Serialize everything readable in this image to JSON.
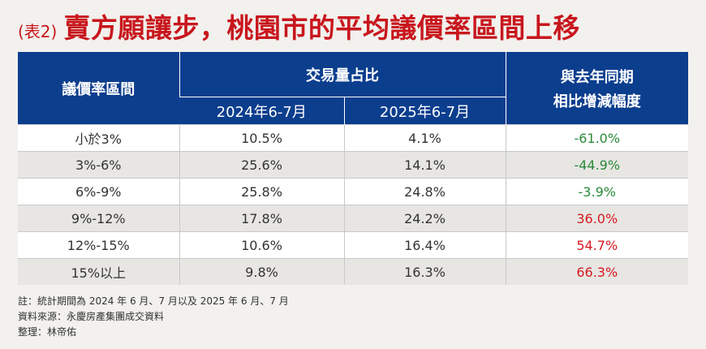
{
  "title": {
    "tag": "(表2)",
    "main": "賣方願讓步，桃園市的平均議價率區間上移"
  },
  "table": {
    "headers": {
      "col1": "議價率區間",
      "group": "交易量占比",
      "sub1": "2024年6-7月",
      "sub2": "2025年6-7月",
      "col4_line1": "與去年同期",
      "col4_line2": "相比增減幅度"
    },
    "rows": [
      {
        "range": "小於3%",
        "y2024": "10.5%",
        "y2025": "4.1%",
        "change": "-61.0%"
      },
      {
        "range": "3%-6%",
        "y2024": "25.6%",
        "y2025": "14.1%",
        "change": "-44.9%"
      },
      {
        "range": "6%-9%",
        "y2024": "25.8%",
        "y2025": "24.8%",
        "change": "-3.9%"
      },
      {
        "range": "9%-12%",
        "y2024": "17.8%",
        "y2025": "24.2%",
        "change": "36.0%"
      },
      {
        "range": "12%-15%",
        "y2024": "10.6%",
        "y2025": "16.4%",
        "change": "54.7%"
      },
      {
        "range": "15%以上",
        "y2024": "9.8%",
        "y2025": "16.3%",
        "change": "66.3%"
      }
    ]
  },
  "colors": {
    "title": "#c8161d",
    "header_bg": "#0c3e8e",
    "negative_change": "#2a8a3a",
    "positive_change": "#d71920"
  },
  "notes": {
    "note": "註：統計期間為 2024 年 6 月、7 月以及 2025 年 6 月、7 月",
    "source": "資料來源：永慶房產集團成交資料",
    "editor": "整理：林帝佑"
  }
}
